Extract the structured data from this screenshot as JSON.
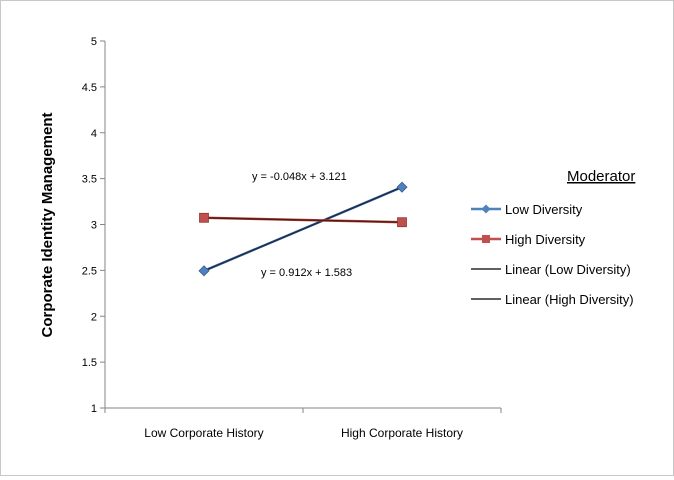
{
  "chart_data": {
    "type": "line",
    "categories": [
      "Low Corporate History",
      "High Corporate History"
    ],
    "ylabel": "Corporate Identity Management",
    "ylim": [
      1,
      5
    ],
    "yticks": [
      "1",
      "1.5",
      "2",
      "2.5",
      "3",
      "3.5",
      "4",
      "4.5",
      "5"
    ],
    "grid": false,
    "legend_position": "right",
    "legend_title": "Moderator",
    "series": [
      {
        "name": "Low Diversity",
        "values": [
          2.495,
          3.407
        ],
        "color": "#4f81bd",
        "marker": "diamond"
      },
      {
        "name": "High Diversity",
        "values": [
          3.073,
          3.025
        ],
        "color": "#c0504d",
        "marker": "square"
      }
    ],
    "trendlines": [
      {
        "name": "Linear (Low Diversity)",
        "of": "Low Diversity",
        "equation": "y = 0.912x + 1.583",
        "color": "#1f2d4a"
      },
      {
        "name": "Linear (High Diversity)",
        "of": "High Diversity",
        "equation": "y = -0.048x + 3.121",
        "color": "#5a1a12"
      }
    ]
  }
}
